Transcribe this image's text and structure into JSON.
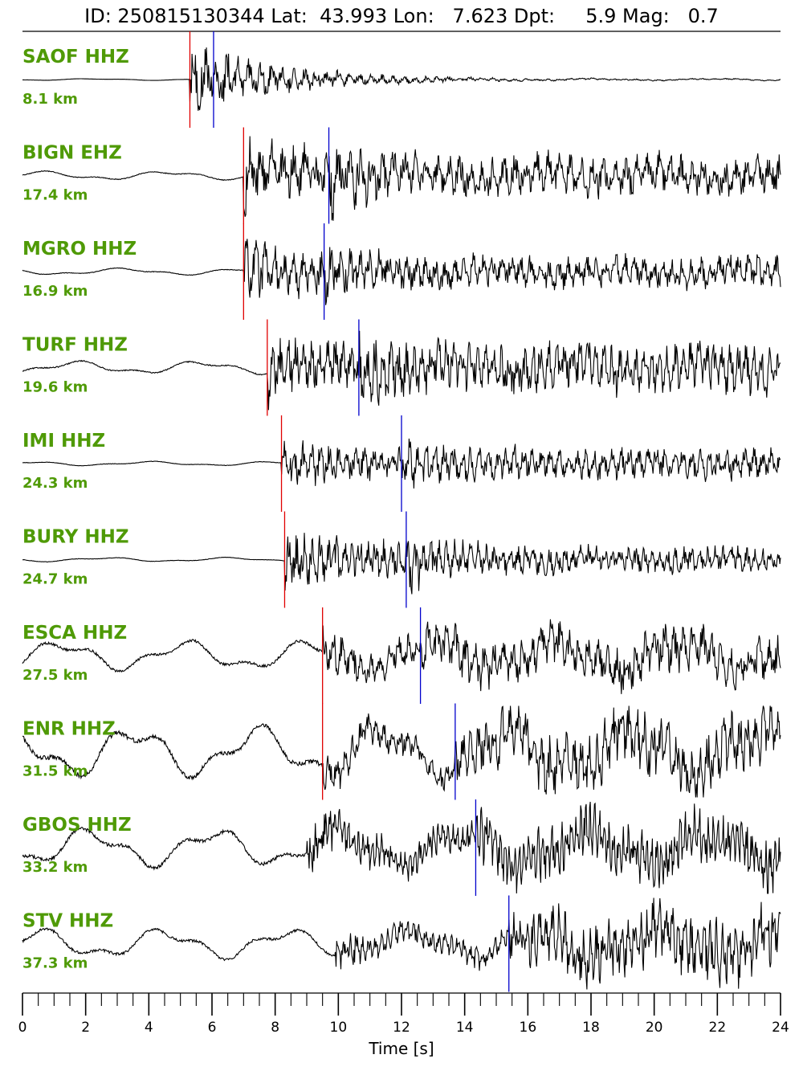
{
  "title": "ID: 250815130344 Lat:  43.993 Lon:   7.623 Dpt:     5.9 Mag:   0.7",
  "chart_data": {
    "type": "line",
    "subtype": "seismogram-record-section",
    "xlabel": "Time [s]",
    "xlim": [
      0,
      24
    ],
    "x_major_ticks": [
      0,
      2,
      4,
      6,
      8,
      10,
      12,
      14,
      16,
      18,
      20,
      22,
      24
    ],
    "x_minor_step": 0.5,
    "label_color": "#4f9a06",
    "p_pick_color": "#e00000",
    "s_pick_color": "#0000cc",
    "trace_color": "#000000",
    "stations": [
      {
        "label": "SAOF HHZ",
        "distance": "8.1 km",
        "p_time": 5.3,
        "s_time": 6.05,
        "pre_amp": 0.02,
        "env": [
          0.85,
          0.2
        ],
        "period": 0.35
      },
      {
        "label": "BIGN EHZ",
        "distance": "17.4 km",
        "p_time": 7.0,
        "s_time": 9.7,
        "pre_amp": 0.1,
        "env": [
          0.9,
          0.45
        ],
        "period": 0.35
      },
      {
        "label": "MGRO HHZ",
        "distance": "16.9 km",
        "p_time": 7.0,
        "s_time": 9.55,
        "pre_amp": 0.08,
        "env": [
          0.7,
          0.35
        ],
        "period": 0.3
      },
      {
        "label": "TURF HHZ",
        "distance": "19.6 km",
        "p_time": 7.75,
        "s_time": 10.65,
        "pre_amp": 0.15,
        "env": [
          0.75,
          0.55
        ],
        "period": 0.25
      },
      {
        "label": "IMI HHZ",
        "distance": "24.3 km",
        "p_time": 8.2,
        "s_time": 12.0,
        "pre_amp": 0.05,
        "env": [
          0.6,
          0.35
        ],
        "period": 0.28
      },
      {
        "label": "BURY HHZ",
        "distance": "24.7 km",
        "p_time": 8.3,
        "s_time": 12.15,
        "pre_amp": 0.05,
        "env": [
          0.7,
          0.3
        ],
        "period": 0.25
      },
      {
        "label": "ESCA HHZ",
        "distance": "27.5 km",
        "p_time": 9.5,
        "s_time": 12.6,
        "pre_amp": 0.35,
        "env": [
          0.55,
          0.5
        ],
        "period": 0.3
      },
      {
        "label": "ENR HHZ",
        "distance": "31.5 km",
        "p_time": 9.5,
        "s_time": 13.7,
        "pre_amp": 0.6,
        "env": [
          0.45,
          0.7
        ],
        "period": 0.25
      },
      {
        "label": "GBOS HHZ",
        "distance": "33.2 km",
        "p_time": null,
        "s_time": 14.35,
        "pre_amp": 0.45,
        "env": [
          0.6,
          0.6
        ],
        "period": 0.15
      },
      {
        "label": "STV HHZ",
        "distance": "37.3 km",
        "p_time": null,
        "s_time": 15.4,
        "pre_amp": 0.35,
        "env": [
          0.45,
          0.7
        ],
        "period": 0.2
      }
    ]
  }
}
